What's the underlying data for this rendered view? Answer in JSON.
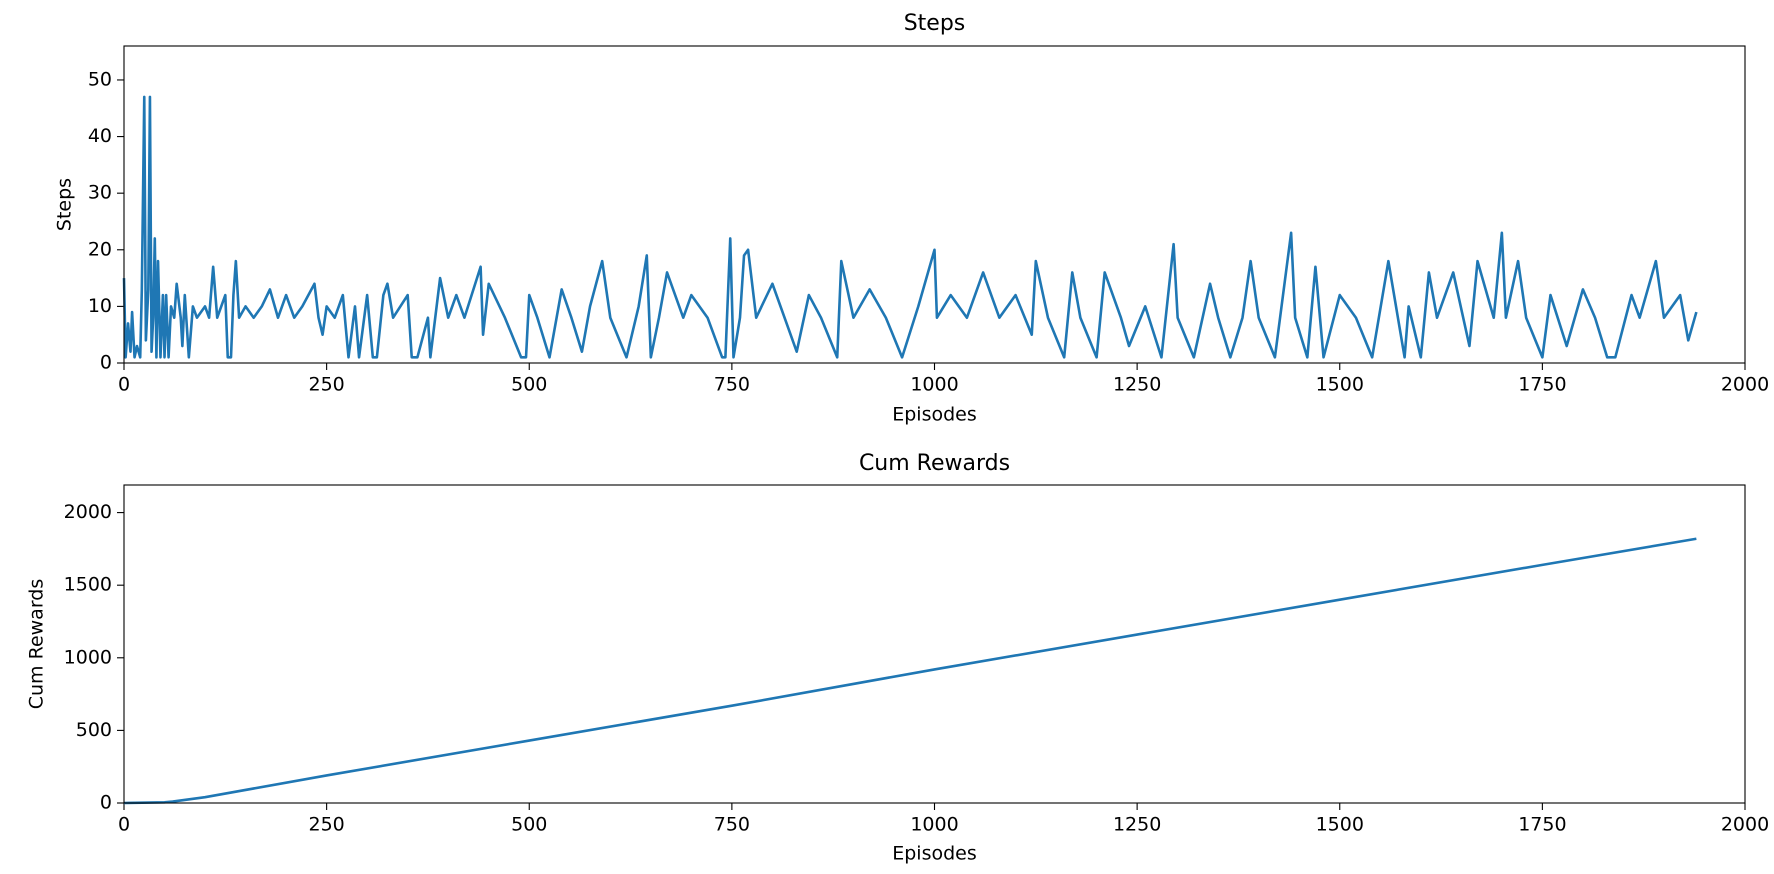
{
  "chart_data": [
    {
      "type": "line",
      "title": "Steps",
      "xlabel": "Episodes",
      "ylabel": "Steps",
      "x": [
        0,
        2,
        5,
        8,
        10,
        13,
        16,
        20,
        22,
        25,
        27,
        30,
        32,
        34,
        36,
        38,
        40,
        42,
        45,
        48,
        50,
        52,
        55,
        58,
        62,
        65,
        70,
        72,
        75,
        80,
        85,
        90,
        100,
        105,
        110,
        115,
        125,
        128,
        132,
        135,
        138,
        142,
        150,
        160,
        170,
        180,
        190,
        200,
        210,
        220,
        235,
        240,
        245,
        250,
        260,
        270,
        277,
        285,
        290,
        300,
        307,
        312,
        320,
        325,
        332,
        350,
        355,
        362,
        375,
        378,
        390,
        400,
        410,
        420,
        440,
        443,
        450,
        470,
        490,
        496,
        500,
        510,
        525,
        540,
        552,
        565,
        575,
        590,
        600,
        620,
        635,
        645,
        650,
        660,
        670,
        690,
        700,
        720,
        738,
        742,
        748,
        752,
        760,
        765,
        770,
        780,
        800,
        815,
        830,
        845,
        860,
        880,
        885,
        900,
        920,
        940,
        960,
        980,
        1000,
        1003,
        1020,
        1040,
        1060,
        1080,
        1100,
        1120,
        1125,
        1140,
        1160,
        1170,
        1180,
        1200,
        1210,
        1230,
        1240,
        1260,
        1280,
        1295,
        1300,
        1320,
        1340,
        1350,
        1365,
        1380,
        1390,
        1400,
        1420,
        1440,
        1445,
        1460,
        1470,
        1480,
        1500,
        1520,
        1540,
        1560,
        1580,
        1585,
        1600,
        1610,
        1620,
        1640,
        1660,
        1670,
        1690,
        1700,
        1705,
        1720,
        1730,
        1750,
        1760,
        1780,
        1800,
        1815,
        1830,
        1840,
        1860,
        1870,
        1890,
        1900,
        1920,
        1930,
        1940
      ],
      "series": [
        {
          "name": "Steps",
          "color": "#1f77b4",
          "values": [
            15,
            1,
            7,
            2,
            9,
            1,
            3,
            1,
            13,
            47,
            4,
            13,
            47,
            2,
            8,
            22,
            1,
            18,
            1,
            12,
            1,
            12,
            1,
            10,
            8,
            14,
            8,
            3,
            12,
            1,
            10,
            8,
            10,
            8,
            17,
            8,
            12,
            1,
            1,
            12,
            18,
            8,
            10,
            8,
            10,
            13,
            8,
            12,
            8,
            10,
            14,
            8,
            5,
            10,
            8,
            12,
            1,
            10,
            1,
            12,
            1,
            1,
            12,
            14,
            8,
            12,
            1,
            1,
            8,
            1,
            15,
            8,
            12,
            8,
            17,
            5,
            14,
            8,
            1,
            1,
            12,
            8,
            1,
            13,
            8,
            2,
            10,
            18,
            8,
            1,
            10,
            19,
            1,
            8,
            16,
            8,
            12,
            8,
            1,
            1,
            22,
            1,
            8,
            19,
            20,
            8,
            14,
            8,
            2,
            12,
            8,
            1,
            18,
            8,
            13,
            8,
            1,
            10,
            20,
            8,
            12,
            8,
            16,
            8,
            12,
            5,
            18,
            8,
            1,
            16,
            8,
            1,
            16,
            8,
            3,
            10,
            1,
            21,
            8,
            1,
            14,
            8,
            1,
            8,
            18,
            8,
            1,
            23,
            8,
            1,
            17,
            1,
            12,
            8,
            1,
            18,
            1,
            10,
            1,
            16,
            8,
            16,
            3,
            18,
            8,
            23,
            8,
            18,
            8,
            1,
            12,
            3,
            13,
            8,
            1,
            1,
            12,
            8,
            18,
            8,
            12,
            4,
            9
          ]
        }
      ],
      "xlim": [
        0,
        2000
      ],
      "xticks": [
        0,
        250,
        500,
        750,
        1000,
        1250,
        1500,
        1750,
        2000
      ],
      "ylim": [
        0,
        56
      ],
      "yticks": [
        0,
        10,
        20,
        30,
        40,
        50
      ]
    },
    {
      "type": "line",
      "title": "Cum Rewards",
      "xlabel": "Episodes",
      "ylabel": "Cum Rewards",
      "x": [
        0,
        50,
        60,
        100,
        250,
        500,
        750,
        1000,
        1250,
        1500,
        1750,
        1940
      ],
      "series": [
        {
          "name": "Cum Rewards",
          "color": "#1f77b4",
          "values": [
            0,
            5,
            10,
            40,
            190,
            430,
            670,
            920,
            1160,
            1400,
            1640,
            1820
          ]
        }
      ],
      "xlim": [
        0,
        2000
      ],
      "xticks": [
        0,
        250,
        500,
        750,
        1000,
        1250,
        1500,
        1750,
        2000
      ],
      "ylim": [
        0,
        2190
      ],
      "yticks": [
        0,
        500,
        1000,
        1500,
        2000
      ]
    }
  ]
}
